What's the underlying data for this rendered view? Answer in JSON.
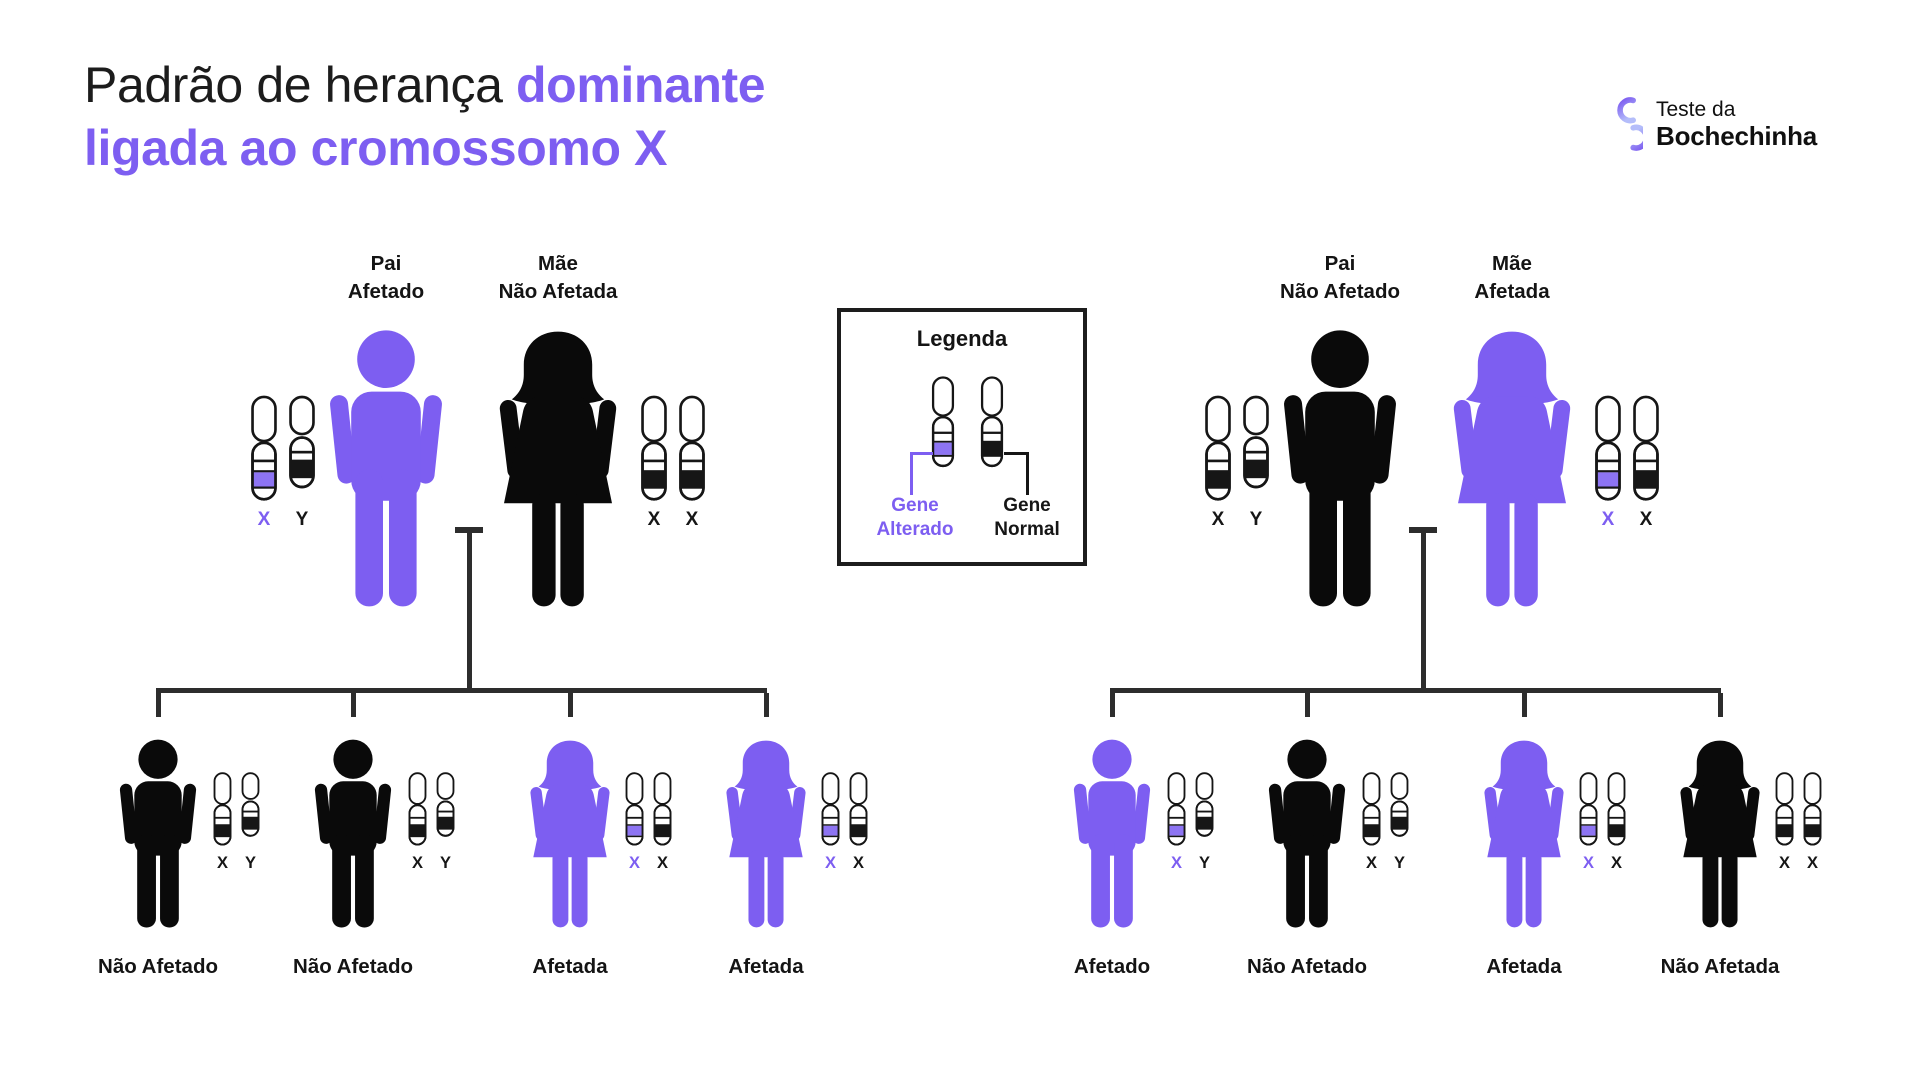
{
  "title": {
    "prefix": "Padrão de herança",
    "highlight": "dominante",
    "line2": "ligada ao cromossomo X"
  },
  "logo": {
    "top": "Teste da",
    "bottom": "Bochechinha"
  },
  "legend": {
    "title": "Legenda",
    "altered": "Gene Alterado",
    "normal": "Gene Normal"
  },
  "colors": {
    "purple": "#7d5ef1",
    "band_purple": "#8d74f3",
    "figure_black": "#0a0a0a",
    "line": "#2d2d2d",
    "ink": "#161616"
  },
  "families": [
    {
      "side": "left",
      "parents": [
        {
          "name_lines": [
            "Pai",
            "Afetado"
          ],
          "sex": "male",
          "affected": true,
          "chromosomes": [
            {
              "label": "X",
              "affected": true
            },
            {
              "label": "Y",
              "affected": false
            }
          ]
        },
        {
          "name_lines": [
            "Mãe",
            "Não Afetada"
          ],
          "sex": "female",
          "affected": false,
          "chromosomes": [
            {
              "label": "X",
              "affected": false
            },
            {
              "label": "X",
              "affected": false
            }
          ]
        }
      ],
      "children": [
        {
          "name": "Não Afetado",
          "sex": "male",
          "affected": false,
          "chromosomes": [
            {
              "label": "X",
              "affected": false
            },
            {
              "label": "Y",
              "affected": false
            }
          ]
        },
        {
          "name": "Não Afetado",
          "sex": "male",
          "affected": false,
          "chromosomes": [
            {
              "label": "X",
              "affected": false
            },
            {
              "label": "Y",
              "affected": false
            }
          ]
        },
        {
          "name": "Afetada",
          "sex": "female",
          "affected": true,
          "chromosomes": [
            {
              "label": "X",
              "affected": true
            },
            {
              "label": "X",
              "affected": false
            }
          ]
        },
        {
          "name": "Afetada",
          "sex": "female",
          "affected": true,
          "chromosomes": [
            {
              "label": "X",
              "affected": true
            },
            {
              "label": "X",
              "affected": false
            }
          ]
        }
      ]
    },
    {
      "side": "right",
      "parents": [
        {
          "name_lines": [
            "Pai",
            "Não Afetado"
          ],
          "sex": "male",
          "affected": false,
          "chromosomes": [
            {
              "label": "X",
              "affected": false
            },
            {
              "label": "Y",
              "affected": false
            }
          ]
        },
        {
          "name_lines": [
            "Mãe",
            "Afetada"
          ],
          "sex": "female",
          "affected": true,
          "chromosomes": [
            {
              "label": "X",
              "affected": true
            },
            {
              "label": "X",
              "affected": false
            }
          ]
        }
      ],
      "children": [
        {
          "name": "Afetado",
          "sex": "male",
          "affected": true,
          "chromosomes": [
            {
              "label": "X",
              "affected": true
            },
            {
              "label": "Y",
              "affected": false
            }
          ]
        },
        {
          "name": "Não Afetado",
          "sex": "male",
          "affected": false,
          "chromosomes": [
            {
              "label": "X",
              "affected": false
            },
            {
              "label": "Y",
              "affected": false
            }
          ]
        },
        {
          "name": "Afetada",
          "sex": "female",
          "affected": true,
          "chromosomes": [
            {
              "label": "X",
              "affected": true
            },
            {
              "label": "X",
              "affected": false
            }
          ]
        },
        {
          "name": "Não Afetada",
          "sex": "female",
          "affected": false,
          "chromosomes": [
            {
              "label": "X",
              "affected": false
            },
            {
              "label": "X",
              "affected": false
            }
          ]
        }
      ]
    }
  ]
}
